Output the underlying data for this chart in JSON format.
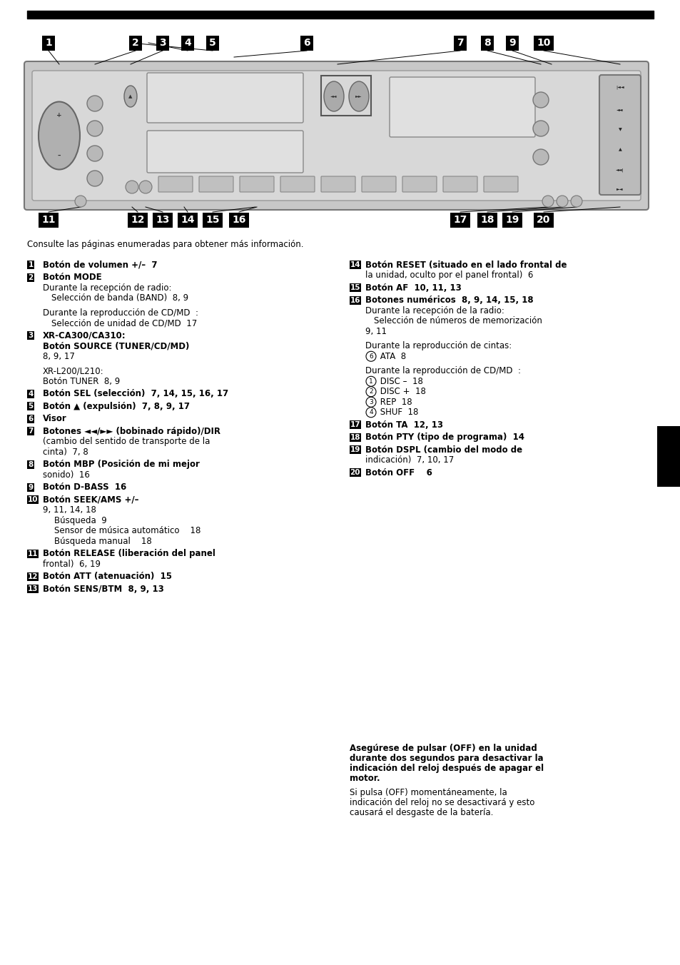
{
  "bg_color": "#ffffff",
  "intro_text": "Consulte las páginas enumeradas para obtener más información.",
  "left_items": [
    {
      "num": "1",
      "lines": [
        [
          "bold",
          "Botón de volumen +/–  7"
        ]
      ]
    },
    {
      "num": "2",
      "lines": [
        [
          "bold",
          "Botón MODE"
        ],
        [
          "normal",
          "Durante la recepción de radio:"
        ],
        [
          "indent",
          "Selección de banda (BAND)  8, 9"
        ],
        [
          "gap",
          ""
        ],
        [
          "normal",
          "Durante la reproducción de CD/MD  :"
        ],
        [
          "indent",
          "Selección de unidad de CD/MD  17"
        ]
      ]
    },
    {
      "num": "3",
      "lines": [
        [
          "bold",
          "XR-CA300/CA310:"
        ],
        [
          "bold",
          "Botón SOURCE (TUNER/CD/MD)"
        ],
        [
          "normal",
          "8, 9, 17"
        ],
        [
          "gap",
          ""
        ],
        [
          "normal",
          "XR-L200/L210:"
        ],
        [
          "normal",
          "Botón TUNER  8, 9"
        ]
      ]
    },
    {
      "num": "4",
      "lines": [
        [
          "bold",
          "Botón SEL (selección)  7, 14, 15, 16, 17"
        ]
      ]
    },
    {
      "num": "5",
      "lines": [
        [
          "bold",
          "Botón ▲ (expulsión)  7, 8, 9, 17"
        ]
      ]
    },
    {
      "num": "6",
      "lines": [
        [
          "bold",
          "Visor"
        ]
      ]
    },
    {
      "num": "7",
      "lines": [
        [
          "bold",
          "Botones ◄◄/►► (bobinado rápido)/DIR"
        ],
        [
          "normal",
          "(cambio del sentido de transporte de la"
        ],
        [
          "normal",
          "cinta)  7, 8"
        ]
      ]
    },
    {
      "num": "8",
      "lines": [
        [
          "bold",
          "Botón MBP (Posición de mi mejor"
        ],
        [
          "normal",
          "sonido)  16"
        ]
      ]
    },
    {
      "num": "9",
      "lines": [
        [
          "bold",
          "Botón D-BASS  16"
        ]
      ]
    },
    {
      "num": "10",
      "lines": [
        [
          "bold",
          "Botón SEEK/AMS +/–"
        ],
        [
          "normal",
          "9, 11, 14, 18"
        ],
        [
          "indent2",
          "Búsqueda  9"
        ],
        [
          "indent2",
          "Sensor de música automático    18"
        ],
        [
          "indent2",
          "Búsqueda manual    18"
        ]
      ]
    },
    {
      "num": "11",
      "lines": [
        [
          "bold",
          "Botón RELEASE (liberación del panel"
        ],
        [
          "normal",
          "frontal)  6, 19"
        ]
      ]
    },
    {
      "num": "12",
      "lines": [
        [
          "bold",
          "Botón ATT (atenuación)  15"
        ]
      ]
    },
    {
      "num": "13",
      "lines": [
        [
          "bold",
          "Botón SENS/BTM  8, 9, 13"
        ]
      ]
    }
  ],
  "right_items": [
    {
      "num": "14",
      "lines": [
        [
          "bold",
          "Botón RESET (situado en el lado frontal de"
        ],
        [
          "normal",
          "la unidad, oculto por el panel frontal)  6"
        ]
      ]
    },
    {
      "num": "15",
      "lines": [
        [
          "bold",
          "Botón AF  10, 11, 13"
        ]
      ]
    },
    {
      "num": "16",
      "lines": [
        [
          "bold",
          "Botones numéricos  8, 9, 14, 15, 18"
        ],
        [
          "normal",
          "Durante la recepción de la radio:"
        ],
        [
          "indent",
          "Selección de números de memorización"
        ],
        [
          "normal",
          "9, 11"
        ],
        [
          "gap",
          ""
        ],
        [
          "normal",
          "Durante la reproducción de cintas:"
        ],
        [
          "circ",
          "6",
          " ATA  8"
        ],
        [
          "gap",
          ""
        ],
        [
          "normal",
          "Durante la reproducción de CD/MD  :"
        ],
        [
          "circ",
          "1",
          " DISC –  18"
        ],
        [
          "circ",
          "2",
          " DISC +  18"
        ],
        [
          "circ",
          "3",
          " REP  18"
        ],
        [
          "circ",
          "4",
          " SHUF  18"
        ]
      ]
    },
    {
      "num": "17",
      "lines": [
        [
          "bold",
          "Botón TA  12, 13"
        ]
      ]
    },
    {
      "num": "18",
      "lines": [
        [
          "bold",
          "Botón PTY (tipo de programa)  14"
        ]
      ]
    },
    {
      "num": "19",
      "lines": [
        [
          "bold",
          "Botón DSPL (cambio del modo de"
        ],
        [
          "normal",
          "indicación)  7, 10, 17"
        ]
      ]
    },
    {
      "num": "20",
      "lines": [
        [
          "bold",
          "Botón OFF    6"
        ]
      ]
    }
  ],
  "footer_bold_lines": [
    "Asegúrese de pulsar (OFF) en la unidad",
    "durante dos segundos para desactivar la",
    "indicación del reloj después de apagar el",
    "motor."
  ],
  "footer_normal_lines": [
    "Si pulsa (OFF) momentáneamente, la",
    "indicación del reloj no se desactivará y esto",
    "causará el desgaste de la batería."
  ]
}
